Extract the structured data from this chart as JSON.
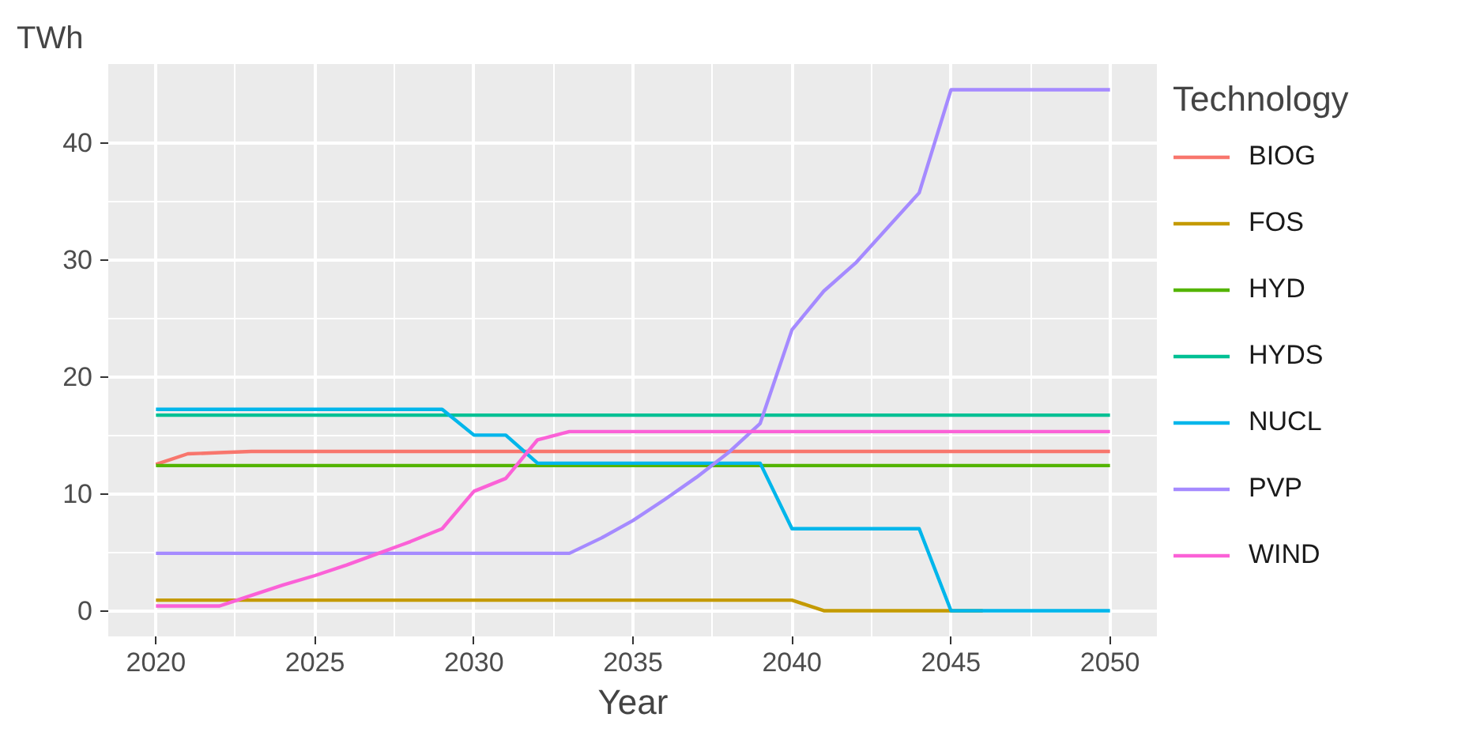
{
  "chart_data": {
    "type": "line",
    "xlabel": "Year",
    "ylabel": "TWh",
    "legend_title": "Technology",
    "x": [
      2020,
      2021,
      2022,
      2023,
      2024,
      2025,
      2026,
      2027,
      2028,
      2029,
      2030,
      2031,
      2032,
      2033,
      2034,
      2035,
      2036,
      2037,
      2038,
      2039,
      2040,
      2041,
      2042,
      2043,
      2044,
      2045,
      2046,
      2047,
      2048,
      2049,
      2050
    ],
    "series": [
      {
        "name": "BIOG",
        "color": "#f8766d",
        "values": [
          12.5,
          13.4,
          13.5,
          13.6,
          13.6,
          13.6,
          13.6,
          13.6,
          13.6,
          13.6,
          13.6,
          13.6,
          13.6,
          13.6,
          13.6,
          13.6,
          13.6,
          13.6,
          13.6,
          13.6,
          13.6,
          13.6,
          13.6,
          13.6,
          13.6,
          13.6,
          13.6,
          13.6,
          13.6,
          13.6,
          13.6
        ]
      },
      {
        "name": "FOS",
        "color": "#c49a00",
        "values": [
          0.9,
          0.9,
          0.9,
          0.9,
          0.9,
          0.9,
          0.9,
          0.9,
          0.9,
          0.9,
          0.9,
          0.9,
          0.9,
          0.9,
          0.9,
          0.9,
          0.9,
          0.9,
          0.9,
          0.9,
          0.9,
          0,
          0,
          0,
          0,
          0,
          0,
          null,
          null,
          null,
          null
        ]
      },
      {
        "name": "HYD",
        "color": "#53b400",
        "values": [
          12.4,
          12.4,
          12.4,
          12.4,
          12.4,
          12.4,
          12.4,
          12.4,
          12.4,
          12.4,
          12.4,
          12.4,
          12.4,
          12.4,
          12.4,
          12.4,
          12.4,
          12.4,
          12.4,
          12.4,
          12.4,
          12.4,
          12.4,
          12.4,
          12.4,
          12.4,
          12.4,
          12.4,
          12.4,
          12.4,
          12.4
        ]
      },
      {
        "name": "HYDS",
        "color": "#00c094",
        "values": [
          16.7,
          16.7,
          16.7,
          16.7,
          16.7,
          16.7,
          16.7,
          16.7,
          16.7,
          16.7,
          16.7,
          16.7,
          16.7,
          16.7,
          16.7,
          16.7,
          16.7,
          16.7,
          16.7,
          16.7,
          16.7,
          16.7,
          16.7,
          16.7,
          16.7,
          16.7,
          16.7,
          16.7,
          16.7,
          16.7,
          16.7
        ]
      },
      {
        "name": "NUCL",
        "color": "#00b6eb",
        "values": [
          17.2,
          17.2,
          17.2,
          17.2,
          17.2,
          17.2,
          17.2,
          17.2,
          17.2,
          17.2,
          15.0,
          15.0,
          12.6,
          12.6,
          12.6,
          12.6,
          12.6,
          12.6,
          12.6,
          12.6,
          7.0,
          7.0,
          7.0,
          7.0,
          7.0,
          0,
          0,
          0,
          0,
          0,
          0
        ]
      },
      {
        "name": "PVP",
        "color": "#a58aff",
        "values": [
          4.9,
          4.9,
          4.9,
          4.9,
          4.9,
          4.9,
          4.9,
          4.9,
          4.9,
          4.9,
          4.9,
          4.9,
          4.9,
          4.9,
          6.2,
          7.7,
          9.5,
          11.4,
          13.5,
          16.0,
          24.0,
          27.3,
          29.7,
          32.7,
          35.7,
          44.5,
          44.5,
          44.5,
          44.5,
          44.5,
          44.5
        ]
      },
      {
        "name": "WIND",
        "color": "#fb61d7",
        "values": [
          0.4,
          0.4,
          0.4,
          1.3,
          2.2,
          3.0,
          3.9,
          4.9,
          5.9,
          7.0,
          10.2,
          11.3,
          14.6,
          15.3,
          15.3,
          15.3,
          15.3,
          15.3,
          15.3,
          15.3,
          15.3,
          15.3,
          15.3,
          15.3,
          15.3,
          15.3,
          15.3,
          15.3,
          15.3,
          15.3,
          15.3
        ]
      }
    ],
    "xlim": [
      2018.5,
      2051.5
    ],
    "ylim": [
      -2.2,
      46.7
    ],
    "xticks": [
      2020,
      2025,
      2030,
      2035,
      2040,
      2045,
      2050
    ],
    "yticks": [
      0,
      10,
      20,
      30,
      40
    ],
    "grid": true,
    "legend": "right"
  }
}
